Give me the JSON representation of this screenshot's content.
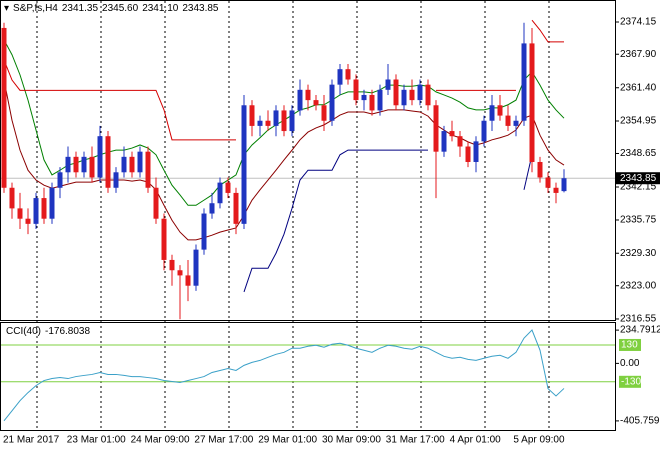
{
  "chart_data": [
    {
      "type": "candlestick",
      "title": "S&P,fs,H4",
      "ohlc_labels": [
        "2341.35",
        "2345.60",
        "2341.10",
        "2343.85"
      ],
      "bull_color": "#1f35c0",
      "bear_color": "#e41a1c",
      "ohlc": [
        [
          2373,
          2374,
          2341,
          2342
        ],
        [
          2342,
          2343,
          2336,
          2338
        ],
        [
          2338,
          2341,
          2334,
          2336
        ],
        [
          2336,
          2338,
          2333,
          2335
        ],
        [
          2335,
          2341,
          2334,
          2340
        ],
        [
          2340,
          2342,
          2335,
          2336
        ],
        [
          2336,
          2343,
          2335,
          2342
        ],
        [
          2342,
          2346,
          2340,
          2345
        ],
        [
          2345,
          2350,
          2343,
          2348
        ],
        [
          2348,
          2349,
          2344,
          2345
        ],
        [
          2345,
          2349,
          2344,
          2348
        ],
        [
          2348,
          2350,
          2343,
          2344
        ],
        [
          2344,
          2354,
          2343,
          2352
        ],
        [
          2352,
          2353,
          2341,
          2342
        ],
        [
          2342,
          2346,
          2341,
          2345
        ],
        [
          2345,
          2350,
          2344,
          2348
        ],
        [
          2348,
          2349,
          2344,
          2345
        ],
        [
          2345,
          2350,
          2344,
          2349
        ],
        [
          2349,
          2350,
          2341,
          2342
        ],
        [
          2342,
          2344,
          2335,
          2336
        ],
        [
          2336,
          2337,
          2326,
          2328
        ],
        [
          2328,
          2329,
          2323,
          2326
        ],
        [
          2326,
          2327,
          2316.5,
          2325
        ],
        [
          2325,
          2328,
          2320,
          2323
        ],
        [
          2323,
          2331,
          2322,
          2330
        ],
        [
          2330,
          2338,
          2329,
          2337
        ],
        [
          2337,
          2341,
          2336,
          2339
        ],
        [
          2339,
          2344,
          2338,
          2343
        ],
        [
          2343,
          2344,
          2340,
          2341
        ],
        [
          2341,
          2342,
          2333,
          2335
        ],
        [
          2335,
          2360,
          2334,
          2358
        ],
        [
          2358,
          2359,
          2352,
          2354
        ],
        [
          2354,
          2356,
          2352,
          2355
        ],
        [
          2355,
          2357,
          2353,
          2354
        ],
        [
          2354,
          2358,
          2352,
          2357
        ],
        [
          2357,
          2358,
          2352,
          2353
        ],
        [
          2353,
          2358,
          2352,
          2357
        ],
        [
          2357,
          2363,
          2356,
          2361
        ],
        [
          2361,
          2362,
          2357,
          2359
        ],
        [
          2359,
          2360,
          2357,
          2358
        ],
        [
          2358,
          2360,
          2353,
          2355
        ],
        [
          2355,
          2363,
          2354,
          2362
        ],
        [
          2362,
          2366,
          2360,
          2365
        ],
        [
          2365,
          2366,
          2362,
          2363
        ],
        [
          2363,
          2364,
          2358,
          2359
        ],
        [
          2359,
          2361,
          2357,
          2360
        ],
        [
          2360,
          2361,
          2356,
          2357
        ],
        [
          2357,
          2362,
          2356,
          2361
        ],
        [
          2361,
          2366,
          2360,
          2363
        ],
        [
          2363,
          2364,
          2357,
          2358
        ],
        [
          2358,
          2362,
          2357,
          2361
        ],
        [
          2361,
          2363,
          2358,
          2359
        ],
        [
          2359,
          2363,
          2358,
          2362
        ],
        [
          2362,
          2363,
          2357,
          2358
        ],
        [
          2358,
          2359,
          2340,
          2349
        ],
        [
          2349,
          2354,
          2348,
          2353
        ],
        [
          2353,
          2355,
          2351,
          2352
        ],
        [
          2352,
          2353,
          2348,
          2350
        ],
        [
          2350,
          2351,
          2346,
          2347
        ],
        [
          2347,
          2352,
          2345,
          2351
        ],
        [
          2351,
          2356,
          2350,
          2355
        ],
        [
          2355,
          2360,
          2353,
          2358
        ],
        [
          2358,
          2360,
          2355,
          2356
        ],
        [
          2356,
          2358,
          2353,
          2354
        ],
        [
          2354,
          2356,
          2352,
          2355
        ],
        [
          2355,
          2374,
          2354,
          2370
        ],
        [
          2370,
          2373,
          2345,
          2347
        ],
        [
          2347,
          2348,
          2343,
          2344
        ],
        [
          2344,
          2345,
          2341,
          2342
        ],
        [
          2342,
          2343,
          2339,
          2341
        ],
        [
          2341.35,
          2345.6,
          2341.1,
          2343.85
        ]
      ],
      "series": [
        {
          "color": "#008000",
          "values": [
            2370.7,
            2367.8,
            2363.9,
            2359.0,
            2353.2,
            2347.4,
            2344.5,
            2345.4,
            2346.4,
            2346.8,
            2347.4,
            2347.8,
            2348.4,
            2348.9,
            2349.3,
            2349.3,
            2349.7,
            2350.3,
            2349.7,
            2348.4,
            2345.4,
            2342.5,
            2340.6,
            2338.6,
            2338.6,
            2339.6,
            2340.6,
            2342.5,
            2343.5,
            2344.5,
            2348.4,
            2350.3,
            2351.7,
            2353.2,
            2354.2,
            2355.1,
            2356.1,
            2357.1,
            2357.5,
            2358.1,
            2358.1,
            2359.0,
            2360.0,
            2360.6,
            2360.6,
            2360.6,
            2360.4,
            2361.0,
            2361.9,
            2361.9,
            2361.7,
            2361.7,
            2361.9,
            2361.7,
            2360.6,
            2360.0,
            2359.4,
            2358.6,
            2357.5,
            2357.1,
            2357.1,
            2357.5,
            2357.5,
            2358.1,
            2359.0,
            2362.9,
            2364.5,
            2361.9,
            2359.0,
            2357.1,
            2355.5
          ]
        },
        {
          "color": "#8b0000",
          "values": [
            2362.9,
            2355.1,
            2349.3,
            2345.4,
            2343.5,
            2342.5,
            2341.9,
            2342.3,
            2342.7,
            2343.1,
            2343.1,
            2343.1,
            2343.5,
            2343.5,
            2343.5,
            2343.5,
            2343.3,
            2343.5,
            2343.1,
            2341.6,
            2338.6,
            2335.7,
            2333.4,
            2331.9,
            2331.9,
            2332.3,
            2332.8,
            2333.4,
            2333.8,
            2334.2,
            2336.7,
            2339.6,
            2341.6,
            2343.5,
            2345.4,
            2347.4,
            2349.3,
            2351.3,
            2352.8,
            2353.6,
            2354.2,
            2355.1,
            2356.1,
            2356.7,
            2356.7,
            2356.7,
            2356.3,
            2356.7,
            2357.1,
            2357.1,
            2357.1,
            2356.9,
            2356.7,
            2355.9,
            2354.2,
            2353.2,
            2352.2,
            2351.7,
            2350.9,
            2350.3,
            2350.7,
            2351.3,
            2351.7,
            2352.2,
            2353.2,
            2355.5,
            2356.1,
            2352.2,
            2349.3,
            2347.4,
            2346.4
          ]
        },
        {
          "color": "#d40000",
          "values": [
            2366.8,
            2362.9,
            2360.9,
            2360.9,
            2360.9,
            2360.9,
            2360.9,
            2360.9,
            2360.9,
            2360.9,
            2360.9,
            2360.9,
            2360.9,
            2360.9,
            2360.9,
            2360.9,
            2360.9,
            2360.9,
            2360.9,
            2360.9,
            2357.1,
            2351.3,
            2351.3,
            2351.3,
            2351.3,
            2351.3,
            2351.3,
            2351.3,
            2351.3,
            2351.3,
            null,
            null,
            null,
            null,
            null,
            null,
            null,
            null,
            null,
            null,
            null,
            null,
            null,
            null,
            null,
            null,
            null,
            null,
            null,
            null,
            null,
            null,
            null,
            null,
            2360.9,
            2360.9,
            2360.9,
            2360.9,
            2360.9,
            2360.9,
            2360.9,
            2360.9,
            2360.9,
            2360.9,
            2360.9,
            null,
            2374.5,
            2372.6,
            2370.3,
            2370.3,
            2370.3
          ]
        },
        {
          "color": "#000080",
          "values": [
            null,
            null,
            null,
            null,
            null,
            null,
            null,
            null,
            null,
            null,
            null,
            null,
            null,
            null,
            null,
            null,
            null,
            null,
            null,
            null,
            null,
            null,
            null,
            null,
            null,
            null,
            null,
            null,
            null,
            null,
            2321.8,
            2326.4,
            2326.4,
            2326.4,
            2329.3,
            2333.0,
            2338.0,
            2343.5,
            2345.4,
            2345.4,
            2345.4,
            2345.4,
            2348.4,
            2349.3,
            2349.3,
            2349.3,
            2349.3,
            2349.3,
            2349.3,
            2349.3,
            2349.3,
            2349.3,
            2349.3,
            2349.3,
            null,
            null,
            null,
            null,
            null,
            null,
            null,
            null,
            null,
            null,
            null,
            2341.6,
            2348.4,
            null,
            null,
            null,
            null
          ]
        }
      ],
      "ylim": [
        2316.35,
        2378.42
      ],
      "yticks": [
        {
          "value": 2374.15,
          "label": "2374.15"
        },
        {
          "value": 2367.9,
          "label": "2367.90"
        },
        {
          "value": 2361.4,
          "label": "2361.40"
        },
        {
          "value": 2354.95,
          "label": "2354.95"
        },
        {
          "value": 2348.65,
          "label": "2348.65"
        },
        {
          "value": 2342.15,
          "label": "2342.15"
        },
        {
          "value": 2335.75,
          "label": "2335.75"
        },
        {
          "value": 2329.3,
          "label": "2329.30"
        },
        {
          "value": 2323,
          "label": "2323.00"
        },
        {
          "value": 2316.55,
          "label": "2316.55"
        }
      ],
      "current_price": {
        "value": 2343.85,
        "label": "2343.85"
      },
      "x_labels": [
        "21 Mar 2017",
        "23 Mar 01:00",
        "24 Mar 09:00",
        "27 Mar 17:00",
        "29 Mar 01:00",
        "30 Mar 09:00",
        "31 Mar 17:00",
        "4 Apr 01:00",
        "5 Apr 09:00"
      ]
    },
    {
      "type": "line",
      "title": "CCI(40)",
      "value_label": "-176.8038",
      "color": "#3aa0c8",
      "values": [
        -405,
        -335,
        -263,
        -206,
        -157,
        -121,
        -107,
        -100,
        -107,
        -93,
        -85,
        -78,
        -64,
        -78,
        -78,
        -85,
        -93,
        -93,
        -100,
        -107,
        -121,
        -128,
        -135,
        -121,
        -107,
        -93,
        -64,
        -50,
        -36,
        -50,
        -14,
        7,
        21,
        43,
        64,
        78,
        107,
        107,
        121,
        128,
        114,
        135,
        142,
        128,
        107,
        93,
        78,
        107,
        128,
        121,
        107,
        100,
        121,
        107,
        78,
        50,
        36,
        43,
        28,
        21,
        36,
        50,
        57,
        36,
        78,
        178,
        235,
        93,
        -178,
        -230,
        -176.8
      ],
      "ylim": [
        -470,
        292
      ],
      "yticks": [
        234.7912,
        {
          "value": 0,
          "label": "0.00"
        },
        -405.759
      ],
      "levels": [
        130,
        -130
      ],
      "level_color": "#7fd040"
    }
  ]
}
